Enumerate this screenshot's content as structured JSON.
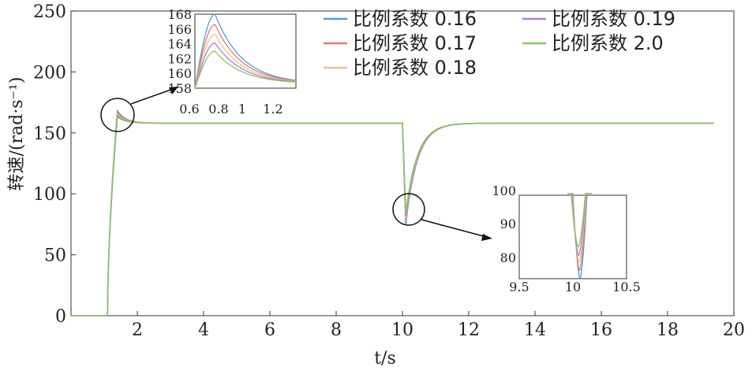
{
  "chart_data": {
    "type": "line",
    "title": "",
    "xlabel": "t/s",
    "ylabel": "转速/(rad·s⁻¹)",
    "xlim": [
      0,
      20
    ],
    "ylim": [
      0,
      250
    ],
    "xticks": [
      2,
      4,
      6,
      8,
      10,
      12,
      14,
      16,
      18,
      20
    ],
    "yticks": [
      0,
      50,
      100,
      150,
      200,
      250
    ],
    "grid": false,
    "legend_position": "top-right",
    "colors": [
      "#4f9fcf",
      "#e07a6e",
      "#e8c48a",
      "#b07fc4",
      "#8ac46a"
    ],
    "series": [
      {
        "name": "比例系数 0.16",
        "peak_start": 168.0,
        "dip_min": 75.0
      },
      {
        "name": "比例系数 0.17",
        "peak_start": 166.6,
        "dip_min": 77.5
      },
      {
        "name": "比例系数 0.18",
        "peak_start": 165.3,
        "dip_min": 80.0
      },
      {
        "name": "比例系数 0.19",
        "peak_start": 164.1,
        "dip_min": 82.0
      },
      {
        "name": "比例系数 2.0",
        "peak_start": 163.0,
        "dip_min": 84.5
      }
    ],
    "steady_value": 158,
    "time_end": 19.4,
    "insets": [
      {
        "xlim": [
          0.6,
          1.2
        ],
        "ylim": [
          158,
          168
        ],
        "xticks": [
          "0.6",
          "0.8",
          "1",
          "1.2"
        ],
        "yticks": [
          "158",
          "160",
          "162",
          "164",
          "166",
          "168"
        ]
      },
      {
        "xlim": [
          9.5,
          10.5
        ],
        "ylim": [
          75,
          100
        ],
        "xticks": [
          "9.5",
          "10",
          "10.5"
        ],
        "yticks": [
          "80",
          "90",
          "100"
        ]
      }
    ]
  }
}
